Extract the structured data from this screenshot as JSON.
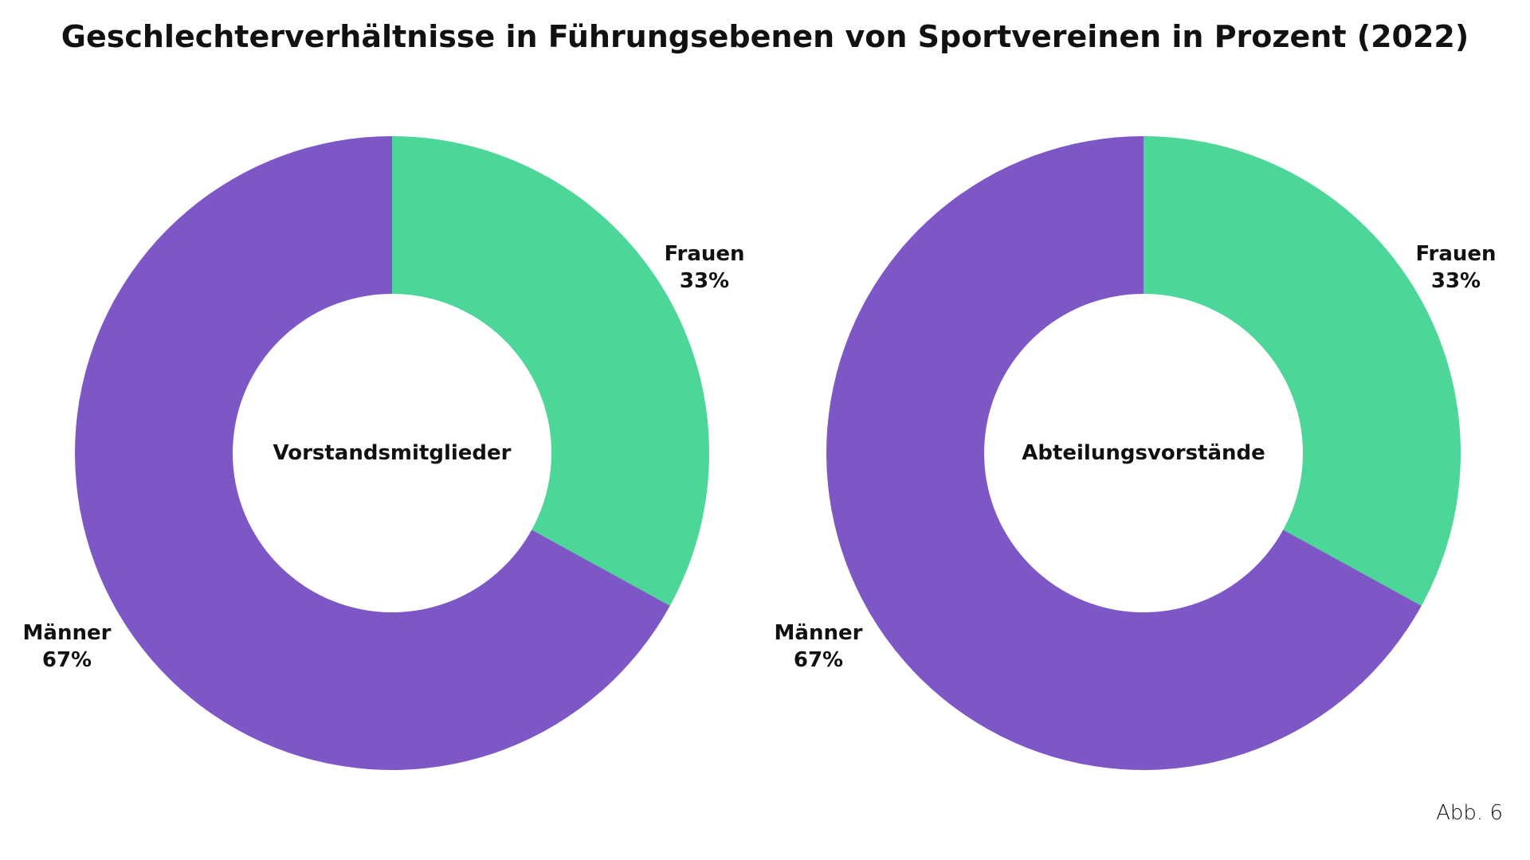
{
  "chart_data": [
    {
      "type": "pie",
      "donut": true,
      "title": "Geschlechterverhältnisse in Führungsebenen von Sportvereinen in Prozent (2022)",
      "center_label": "Vorstandsmitglieder",
      "slices": [
        {
          "name": "Frauen",
          "value": 33,
          "label": "33%",
          "color": "#4CD698"
        },
        {
          "name": "Männer",
          "value": 67,
          "label": "67%",
          "color": "#7E57C6"
        }
      ]
    },
    {
      "type": "pie",
      "donut": true,
      "center_label": "Abteilungsvorstände",
      "slices": [
        {
          "name": "Frauen",
          "value": 33,
          "label": "33%",
          "color": "#4CD698"
        },
        {
          "name": "Männer",
          "value": 67,
          "label": "67%",
          "color": "#7E57C6"
        }
      ]
    }
  ],
  "note": "Abb. 6"
}
